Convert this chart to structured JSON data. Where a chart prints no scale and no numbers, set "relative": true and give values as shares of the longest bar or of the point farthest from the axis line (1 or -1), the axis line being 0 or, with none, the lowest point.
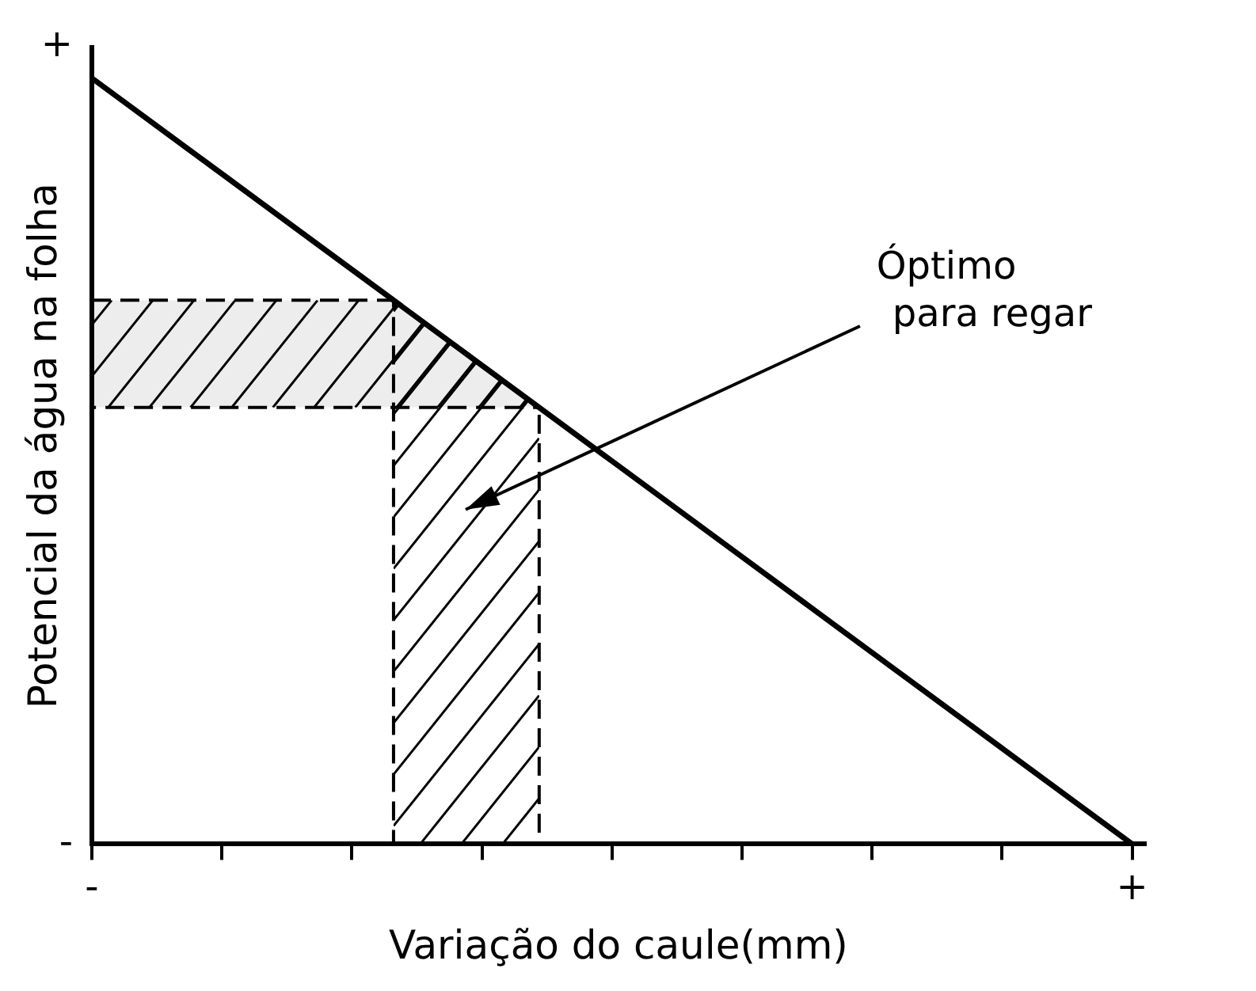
{
  "chart_data": {
    "type": "line",
    "relative": true,
    "xlabel": "Variação do caule(mm)",
    "ylabel": "Potencial da água na folha",
    "categories": [
      "-",
      null,
      null,
      null,
      null,
      null,
      null,
      null,
      "+"
    ],
    "series": [
      {
        "color": "#000000",
        "values": [
          1,
          0.875,
          0.75,
          0.625,
          0.5,
          0.375,
          0.25,
          0.125,
          0
        ]
      }
    ],
    "marker": "none",
    "line_style": "solid",
    "bands": [
      {
        "axis": "y",
        "from": 0.57,
        "to": 0.71,
        "color": "#000000"
      }
    ],
    "annotations": [
      "+",
      "-",
      "Óptimo\npara regar"
    ]
  }
}
